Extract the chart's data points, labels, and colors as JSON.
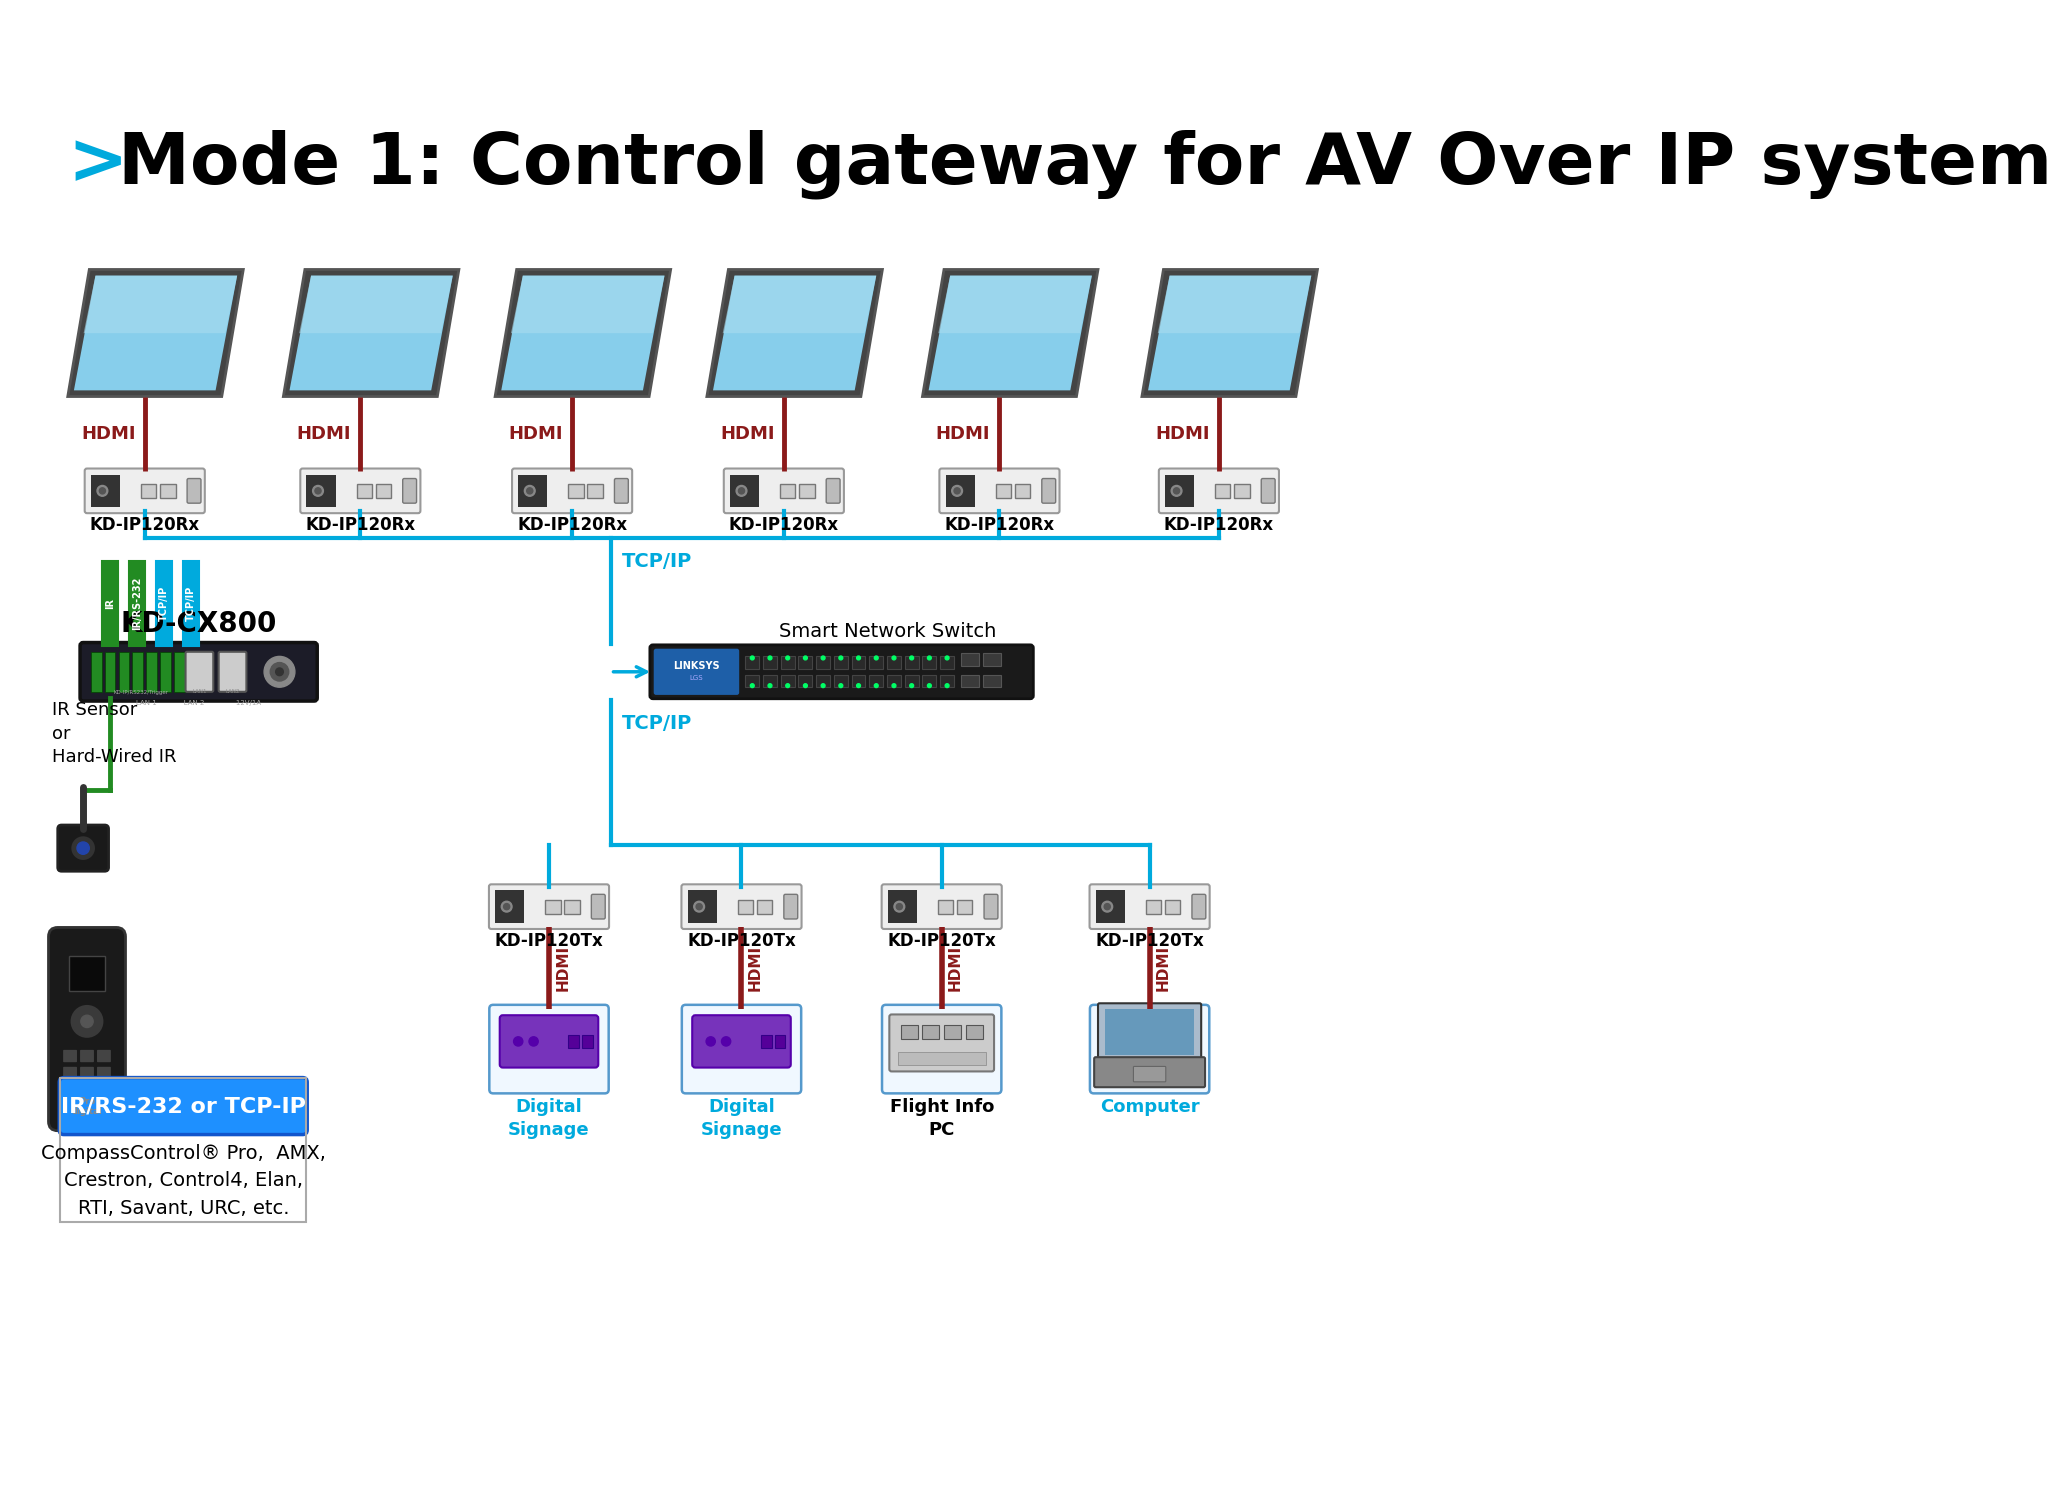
{
  "title_arrow": ">",
  "title_text": "Mode 1: Control gateway for AV Over IP system",
  "title_color": "#000000",
  "title_arrow_color": "#00AADD",
  "bg_color": "#FFFFFF",
  "rx_labels": [
    "KD-IP120Rx",
    "KD-IP120Rx",
    "KD-IP120Rx",
    "KD-IP120Rx",
    "KD-IP120Rx",
    "KD-IP120Rx"
  ],
  "tx_labels": [
    "KD-IP120Tx",
    "KD-IP120Tx",
    "KD-IP120Tx",
    "KD-IP120Tx"
  ],
  "switch_label": "Smart Network Switch",
  "cx800_label": "KD-CX800",
  "hdmi_color": "#8B1A1A",
  "tcpip_color": "#00AADD",
  "green_color": "#228B22",
  "ir_label": "IR/RS-232 or TCP-IP",
  "ir_box_bg": "#1E90FF",
  "ir_text_color": "#FFFFFF",
  "control_text": "CompassControl® Pro,  AMX,\nCrestron, Control4, Elan,\nRTI, Savant, URC, etc.",
  "ir_sensor_label": "IR Sensor\nor\nHard-Wired IR",
  "source_labels": [
    "Digital\nSignage",
    "Digital\nSignage",
    "Flight Info\nPC",
    "Computer"
  ],
  "device_box_color": "#EEEEEE",
  "device_border_color": "#999999",
  "linksys_blue": "#1E5FA8",
  "linksys_black": "#1A1A1A",
  "monitor_frame": "#555555",
  "monitor_face_light": "#87CEEB",
  "monitor_face_dark": "#4A90C8",
  "source_box_border": "#5599CC",
  "digital_signage_color": "#7733BB",
  "flight_pc_color": "#CCCCCC",
  "computer_box_border": "#5599CC"
}
